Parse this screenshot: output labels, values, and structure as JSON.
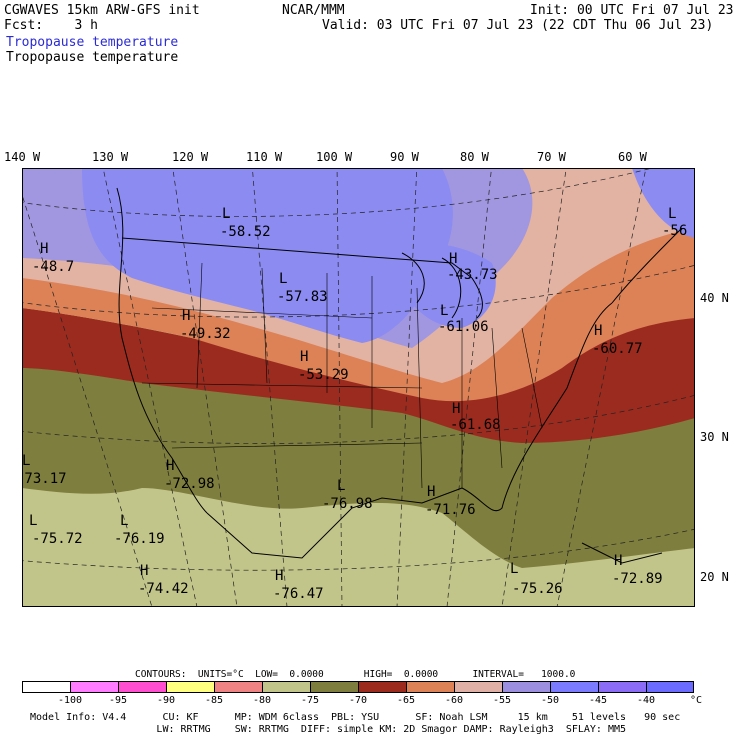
{
  "header": {
    "model_line": "CGWAVES 15km ARW-GFS init",
    "org": "NCAR/MMM",
    "init": "Init: 00 UTC Fri 07 Jul 23",
    "fcst": "Fcst:    3 h",
    "valid": "Valid: 03 UTC Fri 07 Jul 23 (22 CDT Thu 06 Jul 23)",
    "field_blue": "Tropopause temperature",
    "field_black": "Tropopause temperature"
  },
  "axes": {
    "lon_labels": [
      "140 W",
      "130 W",
      "120 W",
      "110 W",
      "100 W",
      "90 W",
      "80 W",
      "70 W",
      "60 W"
    ],
    "lat_labels": [
      "40 N",
      "30 N",
      "20 N"
    ]
  },
  "map_labels": [
    {
      "hl": "L",
      "value": "-58.52"
    },
    {
      "hl": "H",
      "value": "-48.7"
    },
    {
      "hl": "L",
      "value": "-57.83"
    },
    {
      "hl": "H",
      "value": "-49.32"
    },
    {
      "hl": "H",
      "value": "-53.29"
    },
    {
      "hl": "H",
      "value": "-43.73"
    },
    {
      "hl": "L",
      "value": "-61.06"
    },
    {
      "hl": "L",
      "value": "-56"
    },
    {
      "hl": "H",
      "value": "-60.77"
    },
    {
      "hl": "H",
      "value": "-61.68"
    },
    {
      "hl": "L",
      "value": "-73.17"
    },
    {
      "hl": "H",
      "value": "-72.98"
    },
    {
      "hl": "L",
      "value": "-76.98"
    },
    {
      "hl": "H",
      "value": "-71.76"
    },
    {
      "hl": "L",
      "value": "-75.72"
    },
    {
      "hl": "L",
      "value": "-76.19"
    },
    {
      "hl": "H",
      "value": "-74.42"
    },
    {
      "hl": "H",
      "value": "-76.47"
    },
    {
      "hl": "L",
      "value": "-75.26"
    },
    {
      "hl": "H",
      "value": "-72.89"
    }
  ],
  "contours": {
    "line": "CONTOURS:  UNITS=°C  LOW=  0.0000       HIGH=  0.0000      INTERVAL=   1000.0"
  },
  "colorbar": {
    "colors": [
      "#ffffff",
      "#ff7bff",
      "#ff4fd0",
      "#ffff80",
      "#ef8282",
      "#c2c58a",
      "#7e7e3e",
      "#9c2b1e",
      "#dc8256",
      "#e0b0a6",
      "#9d8fe0",
      "#7b7bff",
      "#8a6cf7",
      "#6b6bff"
    ],
    "tick_labels": [
      "-100",
      "-95",
      "-90",
      "-85",
      "-80",
      "-75",
      "-70",
      "-65",
      "-60",
      "-55",
      "-50",
      "-45",
      "-40"
    ],
    "unit": "°C"
  },
  "footer": {
    "line1": "Model Info: V4.4      CU: KF      MP: WDM 6class  PBL: YSU      SF: Noah LSM     15 km    51 levels   90 sec",
    "line2": "                     LW: RRTMG    SW: RRTMG  DIFF: simple KM: 2D Smagor DAMP: Rayleigh3  SFLAY: MM5"
  },
  "palette": {
    "band_blue": "#8b8bf2",
    "band_lavender": "#a197e0",
    "band_pink": "#e2b3a3",
    "band_orange": "#dc8256",
    "band_red": "#9b2b1f",
    "band_olive": "#7e7e3e",
    "band_sage": "#c2c58a"
  }
}
